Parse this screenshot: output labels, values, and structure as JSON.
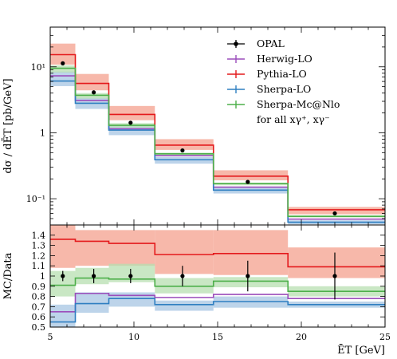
{
  "chart_data": [
    {
      "type": "line",
      "panel": "main",
      "ylabel": "dσ / dĒT [pb/GeV]",
      "xlim": [
        5,
        25
      ],
      "ylim": [
        0.04,
        40
      ],
      "yscale": "log",
      "yticks": [
        {
          "v": 10,
          "label": "10¹"
        },
        {
          "v": 1,
          "label": "1"
        },
        {
          "v": 0.1,
          "label": "10⁻¹"
        }
      ],
      "bin_edges": [
        5,
        6.5,
        8.5,
        11.25,
        14.75,
        19.2,
        25
      ],
      "data": {
        "name": "OPAL",
        "x": [
          5.75,
          7.6,
          9.8,
          12.9,
          16.8,
          22.0
        ],
        "y": [
          11.3,
          4.1,
          1.42,
          0.54,
          0.18,
          0.06
        ]
      },
      "series": [
        {
          "name": "Herwig-LO",
          "color": "#9b4dbb",
          "values": [
            7.3,
            3.1,
            1.15,
            0.45,
            0.15,
            0.049
          ]
        },
        {
          "name": "Pythia-LO",
          "color": "#e41a1c",
          "values": [
            15.3,
            5.6,
            1.9,
            0.65,
            0.22,
            0.068
          ]
        },
        {
          "name": "Sherpa-LO",
          "color": "#2f7fc1",
          "values": [
            6.1,
            2.8,
            1.1,
            0.39,
            0.135,
            0.044
          ]
        },
        {
          "name": "Sherpa-Mc@Nlo",
          "color": "#4daf4a",
          "values": [
            9.5,
            3.7,
            1.3,
            0.48,
            0.17,
            0.054
          ]
        }
      ],
      "bands": [
        {
          "color": "#f4a08d",
          "lo": [
            10.8,
            4.4,
            1.55,
            0.55,
            0.19,
            0.058
          ],
          "hi": [
            22.5,
            7.8,
            2.55,
            0.8,
            0.27,
            0.075
          ]
        },
        {
          "color": "#a7c6e3",
          "lo": [
            5.1,
            2.3,
            0.92,
            0.34,
            0.12,
            0.041
          ],
          "hi": [
            8.5,
            3.4,
            1.3,
            0.43,
            0.15,
            0.047
          ]
        },
        {
          "color": "#b7dfb0",
          "lo": [
            8.2,
            3.3,
            1.2,
            0.45,
            0.16,
            0.052
          ],
          "hi": [
            10.5,
            4.0,
            1.4,
            0.5,
            0.175,
            0.056
          ]
        }
      ],
      "legend_placement": "top-right",
      "legend_extra": "for all xγ⁺, xγ⁻"
    },
    {
      "type": "line",
      "panel": "ratio",
      "xlabel": "ĒT [GeV]",
      "ylabel": "MC/Data",
      "xlim": [
        5,
        25
      ],
      "ylim": [
        0.5,
        1.5
      ],
      "xticks": [
        5,
        10,
        15,
        20,
        25
      ],
      "yticks": [
        "0.5",
        "0.6",
        "0.7",
        "0.8",
        "0.9",
        "1",
        "1.1",
        "1.2",
        "1.3",
        "1.4"
      ],
      "bin_edges": [
        5,
        6.5,
        8.5,
        11.25,
        14.75,
        19.2,
        25
      ],
      "data": {
        "name": "OPAL",
        "x": [
          5.75,
          7.6,
          9.8,
          12.9,
          16.8,
          22.0
        ],
        "y": [
          1,
          1,
          1,
          1,
          1,
          1
        ],
        "err": [
          0.05,
          0.07,
          0.07,
          0.1,
          0.15,
          0.23
        ]
      },
      "series": [
        {
          "name": "Herwig-LO",
          "color": "#9b4dbb",
          "values": [
            0.65,
            0.83,
            0.81,
            0.79,
            0.82,
            0.78
          ]
        },
        {
          "name": "Pythia-LO",
          "color": "#e41a1c",
          "values": [
            1.36,
            1.34,
            1.32,
            1.21,
            1.22,
            1.09
          ]
        },
        {
          "name": "Sherpa-LO",
          "color": "#2f7fc1",
          "values": [
            0.55,
            0.73,
            0.78,
            0.72,
            0.75,
            0.72
          ]
        },
        {
          "name": "Sherpa-Mc@Nlo",
          "color": "#4daf4a",
          "values": [
            0.91,
            0.98,
            0.97,
            0.9,
            0.95,
            0.85
          ]
        }
      ],
      "bands": [
        {
          "color": "#f4a08d",
          "lo": [
            1.08,
            1.1,
            1.1,
            1.02,
            1.01,
            0.98
          ],
          "hi": [
            1.5,
            1.45,
            1.45,
            1.45,
            1.45,
            1.28
          ]
        },
        {
          "color": "#a7c6e3",
          "lo": [
            0.5,
            0.64,
            0.7,
            0.66,
            0.69,
            0.69
          ],
          "hi": [
            0.72,
            0.84,
            0.84,
            0.76,
            0.8,
            0.75
          ]
        },
        {
          "color": "#b7dfb0",
          "lo": [
            0.8,
            0.92,
            0.94,
            0.83,
            0.89,
            0.8
          ],
          "hi": [
            1.05,
            1.08,
            1.12,
            0.98,
            0.99,
            0.9
          ]
        }
      ]
    }
  ]
}
